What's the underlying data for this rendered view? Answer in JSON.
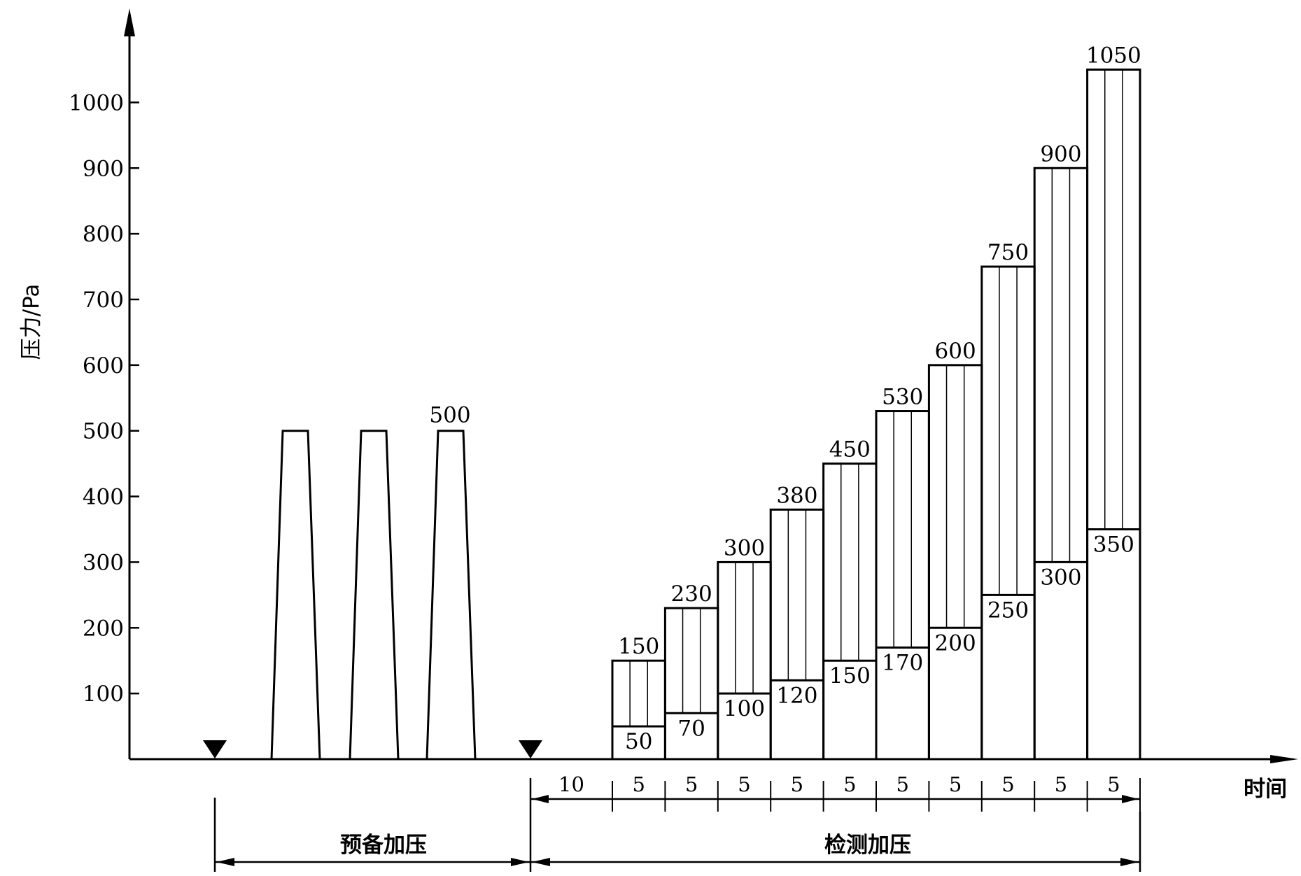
{
  "chart_data": {
    "type": "line",
    "title": "",
    "ylabel": "压力/Pa",
    "xlabel": "时间",
    "ylim": [
      0,
      1100
    ],
    "yticks": [
      100,
      200,
      300,
      400,
      500,
      600,
      700,
      800,
      900,
      1000
    ],
    "grid": false,
    "pre_pressure": {
      "label": "预备加压",
      "pulses": [
        500,
        500,
        500
      ],
      "value_label": "500"
    },
    "test_pressure": {
      "label": "检测加压",
      "steps": [
        {
          "positive": 150,
          "negative": 50
        },
        {
          "positive": 230,
          "negative": 70
        },
        {
          "positive": 300,
          "negative": 100
        },
        {
          "positive": 380,
          "negative": 120
        },
        {
          "positive": 450,
          "negative": 150
        },
        {
          "positive": 530,
          "negative": 170
        },
        {
          "positive": 600,
          "negative": 200
        },
        {
          "positive": 750,
          "negative": 250
        },
        {
          "positive": 900,
          "negative": 300
        },
        {
          "positive": 1050,
          "negative": 350
        }
      ],
      "durations": [
        "10",
        "5",
        "5",
        "5",
        "5",
        "5",
        "5",
        "5",
        "5",
        "5",
        "5"
      ]
    }
  }
}
